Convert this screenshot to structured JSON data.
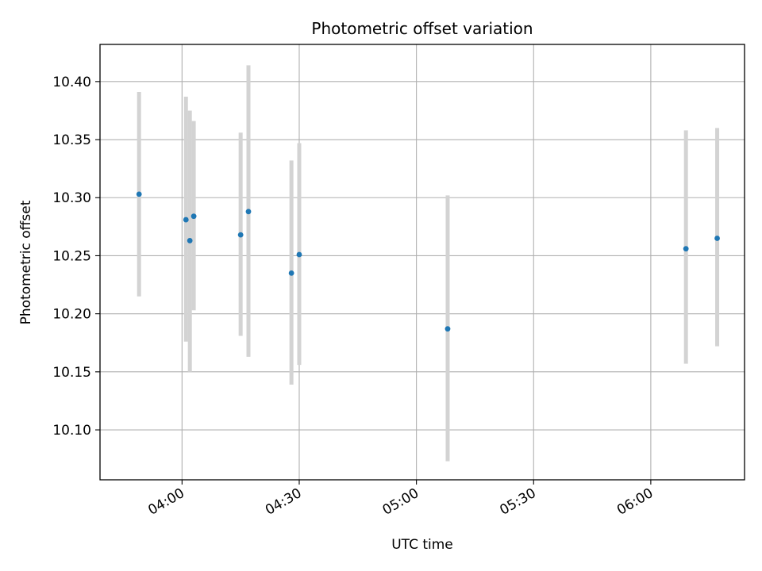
{
  "chart_data": {
    "type": "scatter",
    "title": "Photometric offset variation",
    "xlabel": "UTC time",
    "ylabel": "Photometric offset",
    "x_type": "time",
    "xlim": [
      "03:39",
      "06:24"
    ],
    "ylim": [
      10.057,
      10.432
    ],
    "grid": true,
    "xticks": [
      "04:00",
      "04:30",
      "05:00",
      "05:30",
      "06:00"
    ],
    "yticks": [
      "10.10",
      "10.15",
      "10.20",
      "10.25",
      "10.30",
      "10.35",
      "10.40"
    ],
    "points": [
      {
        "x": "03:49",
        "y": 10.303,
        "ylow": 10.215,
        "yhigh": 10.391
      },
      {
        "x": "04:01",
        "y": 10.281,
        "ylow": 10.176,
        "yhigh": 10.387
      },
      {
        "x": "04:02",
        "y": 10.263,
        "ylow": 10.15,
        "yhigh": 10.375
      },
      {
        "x": "04:03",
        "y": 10.284,
        "ylow": 10.203,
        "yhigh": 10.366
      },
      {
        "x": "04:15",
        "y": 10.268,
        "ylow": 10.181,
        "yhigh": 10.356
      },
      {
        "x": "04:17",
        "y": 10.288,
        "ylow": 10.163,
        "yhigh": 10.414
      },
      {
        "x": "04:28",
        "y": 10.235,
        "ylow": 10.139,
        "yhigh": 10.332
      },
      {
        "x": "04:30",
        "y": 10.251,
        "ylow": 10.156,
        "yhigh": 10.347
      },
      {
        "x": "05:08",
        "y": 10.187,
        "ylow": 10.073,
        "yhigh": 10.302
      },
      {
        "x": "06:09",
        "y": 10.256,
        "ylow": 10.157,
        "yhigh": 10.358
      },
      {
        "x": "06:17",
        "y": 10.265,
        "ylow": 10.172,
        "yhigh": 10.36
      }
    ],
    "colors": {
      "marker": "#1f77b4",
      "errorbar": "#d3d3d3",
      "grid": "#b0b0b0",
      "frame": "#000000"
    }
  }
}
